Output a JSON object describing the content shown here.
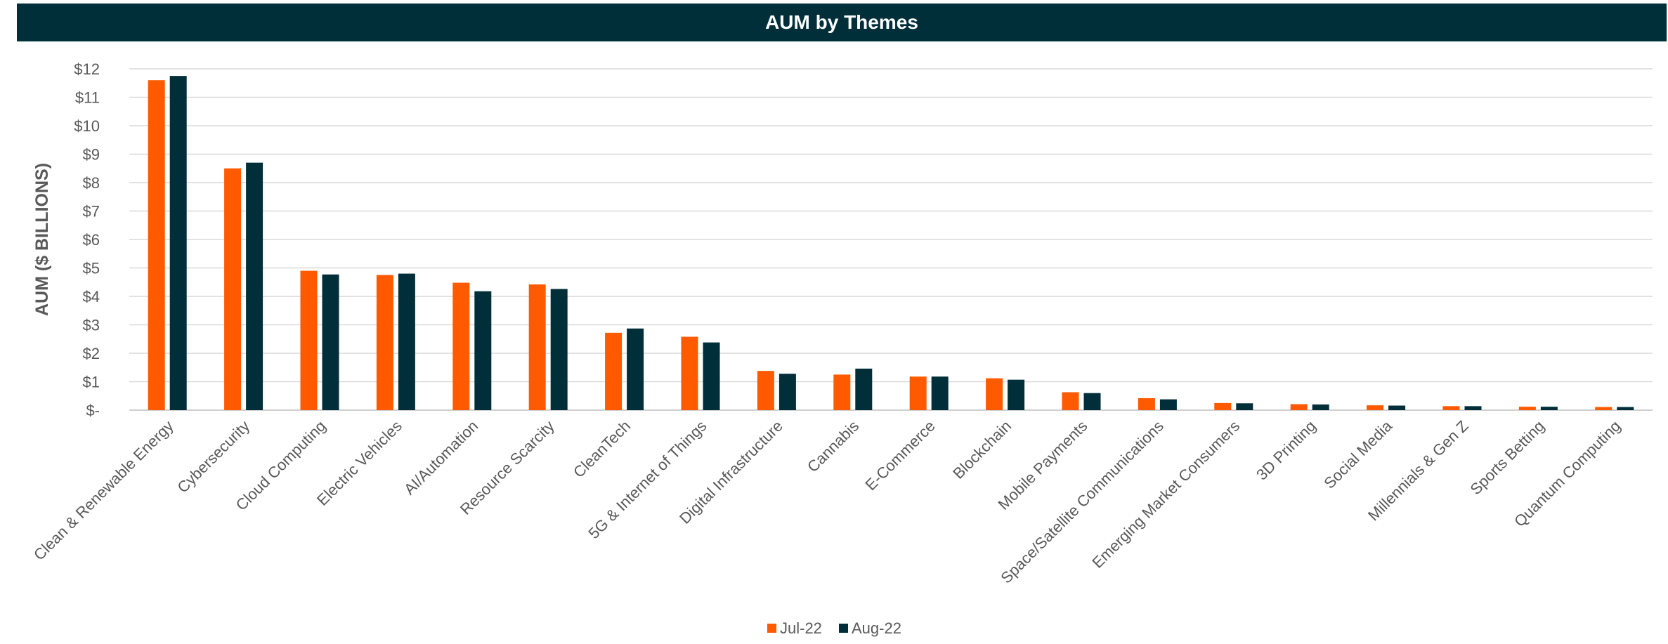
{
  "chart_data": {
    "type": "bar",
    "title": "AUM by Themes",
    "ylabel": "AUM ($ BILLIONS)",
    "xlabel": "",
    "ylim": [
      0,
      12
    ],
    "y_ticks": [
      {
        "value": 0,
        "label": "$-"
      },
      {
        "value": 1,
        "label": "$1"
      },
      {
        "value": 2,
        "label": "$2"
      },
      {
        "value": 3,
        "label": "$3"
      },
      {
        "value": 4,
        "label": "$4"
      },
      {
        "value": 5,
        "label": "$5"
      },
      {
        "value": 6,
        "label": "$6"
      },
      {
        "value": 7,
        "label": "$7"
      },
      {
        "value": 8,
        "label": "$8"
      },
      {
        "value": 9,
        "label": "$9"
      },
      {
        "value": 10,
        "label": "$10"
      },
      {
        "value": 11,
        "label": "$11"
      },
      {
        "value": 12,
        "label": "$12"
      }
    ],
    "grid": true,
    "legend_position": "bottom",
    "categories": [
      "Clean & Renewable Energy",
      "Cybersecurity",
      "Cloud Computing",
      "Electric Vehicles",
      "AI/Automation",
      "Resource Scarcity",
      "CleanTech",
      "5G & Internet of Things",
      "Digital Infrastructure",
      "Cannabis",
      "E-Commerce",
      "Blockchain",
      "Mobile Payments",
      "Space/Satellite Communications",
      "Emerging Market Consumers",
      "3D Printing",
      "Social Media",
      "Millennials & Gen Z",
      "Sports Betting",
      "Quantum Computing"
    ],
    "series": [
      {
        "name": "Jul-22",
        "color": "#ff5a00",
        "values": [
          11.6,
          8.5,
          4.9,
          4.75,
          4.48,
          4.42,
          2.72,
          2.58,
          1.38,
          1.25,
          1.18,
          1.12,
          0.63,
          0.42,
          0.25,
          0.21,
          0.17,
          0.14,
          0.12,
          0.11
        ]
      },
      {
        "name": "Aug-22",
        "color": "#012f39",
        "values": [
          11.75,
          8.7,
          4.77,
          4.8,
          4.18,
          4.26,
          2.87,
          2.38,
          1.28,
          1.46,
          1.18,
          1.07,
          0.6,
          0.38,
          0.24,
          0.2,
          0.16,
          0.14,
          0.12,
          0.11
        ]
      }
    ]
  }
}
